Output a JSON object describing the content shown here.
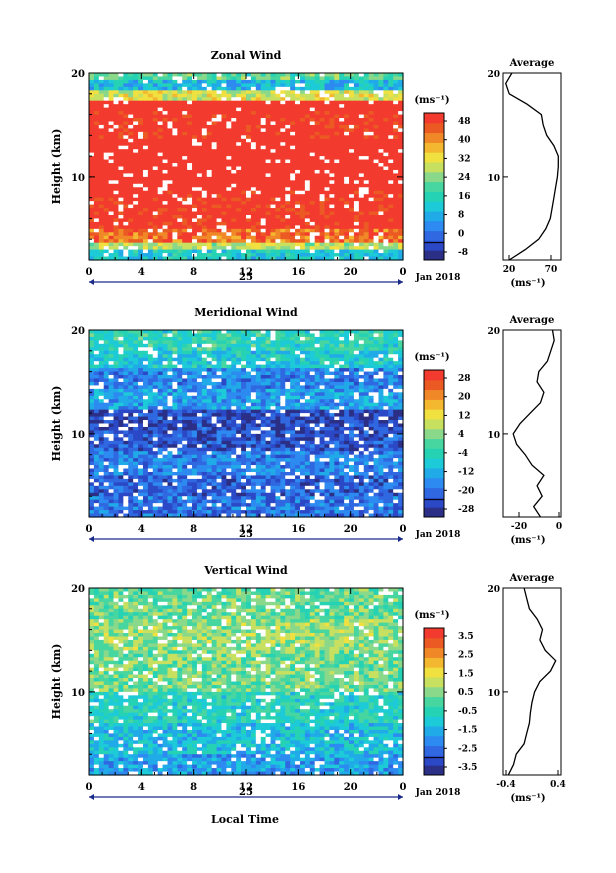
{
  "figure": {
    "xlabel": "Local Time",
    "panels": [
      {
        "title": "Zonal Wind",
        "ylabel": "Height (km)",
        "yticks": [
          "20",
          "10"
        ],
        "xticks": [
          "0",
          "4",
          "8",
          "12",
          "16",
          "20",
          "0"
        ],
        "day_label": "25",
        "date_label": "Jan 2018",
        "colorbar": {
          "unit": "(ms⁻¹)",
          "ticks": [
            "48",
            "40",
            "32",
            "24",
            "16",
            "8",
            "0",
            "-8"
          ]
        },
        "average": {
          "title": "Average",
          "yticks": [
            "20",
            "10"
          ],
          "xticks": [
            "20",
            "70"
          ],
          "unit": "(ms⁻¹)"
        }
      },
      {
        "title": "Meridional Wind",
        "ylabel": "Height (km)",
        "yticks": [
          "20",
          "10"
        ],
        "xticks": [
          "0",
          "4",
          "8",
          "12",
          "16",
          "20",
          "0"
        ],
        "day_label": "25",
        "date_label": "Jan 2018",
        "colorbar": {
          "unit": "(ms⁻¹)",
          "ticks": [
            "28",
            "20",
            "12",
            "4",
            "-4",
            "-12",
            "-20",
            "-28"
          ]
        },
        "average": {
          "title": "Average",
          "yticks": [
            "20",
            "10"
          ],
          "xticks": [
            "-20",
            "0"
          ],
          "unit": "(ms⁻¹)"
        }
      },
      {
        "title": "Vertical Wind",
        "ylabel": "Height (km)",
        "yticks": [
          "20",
          "10"
        ],
        "xticks": [
          "0",
          "4",
          "8",
          "12",
          "16",
          "20",
          "0"
        ],
        "day_label": "25",
        "date_label": "Jan 2018",
        "colorbar": {
          "unit": "(ms⁻¹)",
          "ticks": [
            "3.5",
            "2.5",
            "1.5",
            "0.5",
            "-0.5",
            "-1.5",
            "-2.5",
            "-3.5"
          ]
        },
        "average": {
          "title": "Average",
          "yticks": [
            "20",
            "10"
          ],
          "xticks": [
            "-0.4",
            "0.4"
          ],
          "unit": "(ms⁻¹)"
        }
      }
    ]
  },
  "chart_data": [
    {
      "type": "heatmap",
      "title": "Zonal Wind",
      "xlabel": "",
      "ylabel": "Height (km)",
      "xlim": [
        0,
        24
      ],
      "ylim": [
        2,
        20
      ],
      "clim": [
        -12,
        52
      ],
      "bands": [
        {
          "z0": 2.0,
          "z1": 3.0,
          "value": 12
        },
        {
          "z0": 3.0,
          "z1": 3.8,
          "value": 28
        },
        {
          "z0": 3.8,
          "z1": 5.0,
          "value": 44
        },
        {
          "z0": 5.0,
          "z1": 8.8,
          "value": 52
        },
        {
          "z0": 8.8,
          "z1": 13.8,
          "value": 55
        },
        {
          "z0": 13.8,
          "z1": 16.5,
          "value": 52
        },
        {
          "z0": 16.5,
          "z1": 17.5,
          "value": 56
        },
        {
          "z0": 17.5,
          "z1": 18.3,
          "value": 30
        },
        {
          "z0": 18.3,
          "z1": 19.5,
          "value": 10
        },
        {
          "z0": 19.5,
          "z1": 20.0,
          "value": 20
        }
      ],
      "average": {
        "title": "Average",
        "xlim": [
          15,
          80
        ],
        "z": [
          2,
          3,
          4,
          5,
          6,
          7,
          8,
          9,
          10,
          11,
          12,
          13,
          14,
          15,
          16,
          17,
          18,
          19,
          20
        ],
        "x": [
          22,
          40,
          55,
          63,
          68,
          70,
          72,
          74,
          76,
          77,
          77,
          72,
          64,
          60,
          58,
          42,
          22,
          18,
          25
        ]
      }
    },
    {
      "type": "heatmap",
      "title": "Meridional Wind",
      "xlabel": "",
      "ylabel": "Height (km)",
      "xlim": [
        0,
        24
      ],
      "ylim": [
        2,
        20
      ],
      "clim": [
        -32,
        32
      ],
      "bands": [
        {
          "z0": 2.0,
          "z1": 4.0,
          "value": -20
        },
        {
          "z0": 4.0,
          "z1": 6.0,
          "value": -22
        },
        {
          "z0": 6.0,
          "z1": 8.5,
          "value": -18
        },
        {
          "z0": 8.5,
          "z1": 10.5,
          "value": -24
        },
        {
          "z0": 10.5,
          "z1": 12.5,
          "value": -26
        },
        {
          "z0": 12.5,
          "z1": 14.5,
          "value": -14
        },
        {
          "z0": 14.5,
          "z1": 16.5,
          "value": -18
        },
        {
          "z0": 16.5,
          "z1": 18.0,
          "value": -8
        },
        {
          "z0": 18.0,
          "z1": 20.0,
          "value": -4
        }
      ],
      "average": {
        "title": "Average",
        "xlim": [
          -32,
          2
        ],
        "z": [
          2,
          3,
          4,
          5,
          6,
          7,
          8,
          9,
          10,
          11,
          12,
          13,
          14,
          15,
          16,
          17,
          18,
          19,
          20
        ],
        "x": [
          -10,
          -14,
          -9,
          -12,
          -8,
          -15,
          -19,
          -24,
          -26,
          -22,
          -16,
          -10,
          -8,
          -12,
          -11,
          -6,
          -4,
          -2,
          -3
        ]
      }
    },
    {
      "type": "heatmap",
      "title": "Vertical Wind",
      "xlabel": "Local Time",
      "ylabel": "Height (km)",
      "xlim": [
        0,
        24
      ],
      "ylim": [
        2,
        20
      ],
      "clim": [
        -4,
        4
      ],
      "bands": [
        {
          "z0": 2.0,
          "z1": 4.0,
          "value": -1.8
        },
        {
          "z0": 4.0,
          "z1": 7.0,
          "value": -1.2
        },
        {
          "z0": 7.0,
          "z1": 10.0,
          "value": -0.6
        },
        {
          "z0": 10.0,
          "z1": 14.0,
          "value": 0.3
        },
        {
          "z0": 14.0,
          "z1": 17.0,
          "value": 0.6
        },
        {
          "z0": 17.0,
          "z1": 20.0,
          "value": 0.2
        }
      ],
      "average": {
        "title": "Average",
        "xlim": [
          -0.5,
          0.6
        ],
        "z": [
          2,
          3,
          4,
          5,
          6,
          7,
          8,
          9,
          10,
          11,
          12,
          13,
          14,
          15,
          16,
          17,
          18,
          19,
          20
        ],
        "x": [
          -0.4,
          -0.3,
          -0.25,
          -0.1,
          -0.05,
          0.0,
          0.02,
          0.05,
          0.1,
          0.2,
          0.4,
          0.5,
          0.3,
          0.2,
          0.25,
          0.15,
          0.0,
          -0.05,
          -0.1
        ]
      }
    }
  ]
}
